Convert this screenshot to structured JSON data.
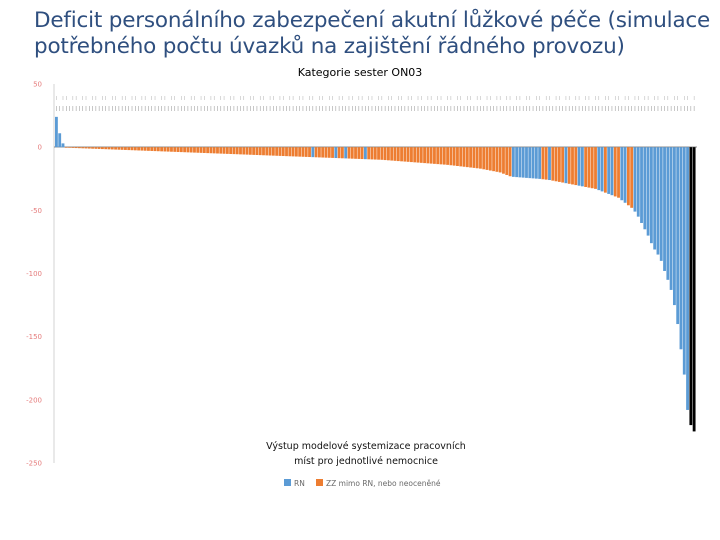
{
  "slide": {
    "title_line1": "Deficit personálního zabezpečení akutní lůžkové péče (simulace",
    "title_line2": "potřebného počtu úvazků na zajištění řádného provozu)"
  },
  "chart_data": {
    "type": "bar",
    "title": "Kategorie sester ON03",
    "annotation_line1": "Výstup modelové systemizace pracovních",
    "annotation_line2": "míst pro jednotlivé nemocnice",
    "ylim": [
      -250,
      50
    ],
    "yticks": [
      50,
      0,
      -50,
      -100,
      -150,
      -200,
      -250
    ],
    "grid": false,
    "legend_placement": "bottom-center",
    "series": [
      {
        "name": "RN",
        "color": "#5b9bd5"
      },
      {
        "name": "ZZ mimo RN, nebo neoceněné",
        "color": "#ed7d31"
      }
    ],
    "bar_series": [
      0,
      0,
      0,
      1,
      1,
      1,
      1,
      1,
      1,
      1,
      1,
      1,
      1,
      1,
      1,
      1,
      1,
      1,
      1,
      1,
      1,
      1,
      1,
      1,
      1,
      1,
      1,
      1,
      1,
      1,
      1,
      1,
      1,
      1,
      1,
      1,
      1,
      1,
      1,
      1,
      1,
      1,
      1,
      1,
      1,
      1,
      1,
      1,
      1,
      1,
      1,
      1,
      1,
      1,
      1,
      1,
      1,
      1,
      1,
      1,
      1,
      1,
      1,
      1,
      1,
      1,
      1,
      1,
      1,
      1,
      1,
      1,
      1,
      1,
      1,
      1,
      1,
      1,
      0,
      1,
      1,
      1,
      1,
      1,
      1,
      0,
      1,
      1,
      0,
      1,
      1,
      1,
      1,
      1,
      0,
      1,
      1,
      1,
      1,
      1,
      1,
      1,
      1,
      1,
      1,
      1,
      1,
      1,
      1,
      1,
      1,
      1,
      1,
      1,
      1,
      1,
      1,
      1,
      1,
      1,
      1,
      1,
      1,
      1,
      1,
      1,
      1,
      1,
      1,
      1,
      1,
      1,
      1,
      1,
      1,
      1,
      1,
      1,
      1,
      0,
      0,
      0,
      0,
      0,
      0,
      0,
      0,
      0,
      1,
      1,
      0,
      1,
      1,
      1,
      1,
      0,
      1,
      1,
      1,
      0,
      0,
      1,
      1,
      1,
      1,
      0,
      0,
      1,
      0,
      0,
      1,
      1,
      0,
      0,
      1,
      1,
      0,
      0,
      0,
      0,
      0,
      0,
      0,
      0,
      0,
      0,
      0,
      0,
      0,
      0,
      0,
      0,
      0
    ],
    "values": [
      24,
      11,
      3,
      -0.3,
      -0.5,
      -0.6,
      -0.7,
      -0.8,
      -0.9,
      -1,
      -1.1,
      -1.2,
      -1.3,
      -1.4,
      -1.5,
      -1.6,
      -1.7,
      -1.8,
      -1.9,
      -2,
      -2.1,
      -2.2,
      -2.3,
      -2.4,
      -2.5,
      -2.6,
      -2.7,
      -2.8,
      -2.9,
      -3,
      -3.1,
      -3.2,
      -3.3,
      -3.4,
      -3.5,
      -3.6,
      -3.7,
      -3.8,
      -3.9,
      -4,
      -4.1,
      -4.2,
      -4.3,
      -4.4,
      -4.5,
      -4.6,
      -4.7,
      -4.8,
      -4.9,
      -5,
      -5.1,
      -5.2,
      -5.3,
      -5.4,
      -5.5,
      -5.6,
      -5.7,
      -5.8,
      -5.9,
      -6,
      -6.1,
      -6.2,
      -6.3,
      -6.4,
      -6.5,
      -6.6,
      -6.7,
      -6.8,
      -6.9,
      -7,
      -7.1,
      -7.2,
      -7.3,
      -7.4,
      -7.5,
      -7.6,
      -7.7,
      -7.8,
      -7.9,
      -8,
      -8.1,
      -8.2,
      -8.3,
      -8.4,
      -8.5,
      -8.6,
      -8.7,
      -8.8,
      -8.9,
      -9,
      -9.1,
      -9.2,
      -9.3,
      -9.4,
      -9.5,
      -9.6,
      -9.7,
      -9.8,
      -9.9,
      -10,
      -10.2,
      -10.4,
      -10.6,
      -10.8,
      -11,
      -11.2,
      -11.4,
      -11.6,
      -11.8,
      -12,
      -12.2,
      -12.4,
      -12.6,
      -12.8,
      -13,
      -13.2,
      -13.4,
      -13.6,
      -13.8,
      -14,
      -14.3,
      -14.6,
      -14.9,
      -15.2,
      -15.5,
      -15.8,
      -16.1,
      -16.4,
      -16.7,
      -17,
      -17.5,
      -18,
      -18.5,
      -19,
      -19.5,
      -20,
      -21,
      -22,
      -23,
      -23.5,
      -23.7,
      -23.9,
      -24.1,
      -24.3,
      -24.5,
      -24.7,
      -24.9,
      -25.1,
      -25.4,
      -25.7,
      -26,
      -26.5,
      -27,
      -27.5,
      -28,
      -28.5,
      -29,
      -29.5,
      -30,
      -30.5,
      -31,
      -31.5,
      -32,
      -32.5,
      -33,
      -34,
      -35,
      -36,
      -37,
      -38,
      -39,
      -40,
      -42,
      -44,
      -46,
      -48,
      -51,
      -55,
      -60,
      -65,
      -70,
      -76,
      -81,
      -85,
      -90,
      -98,
      -105,
      -113,
      -125,
      -140,
      -160,
      -180,
      -208,
      -220,
      -225
    ]
  }
}
